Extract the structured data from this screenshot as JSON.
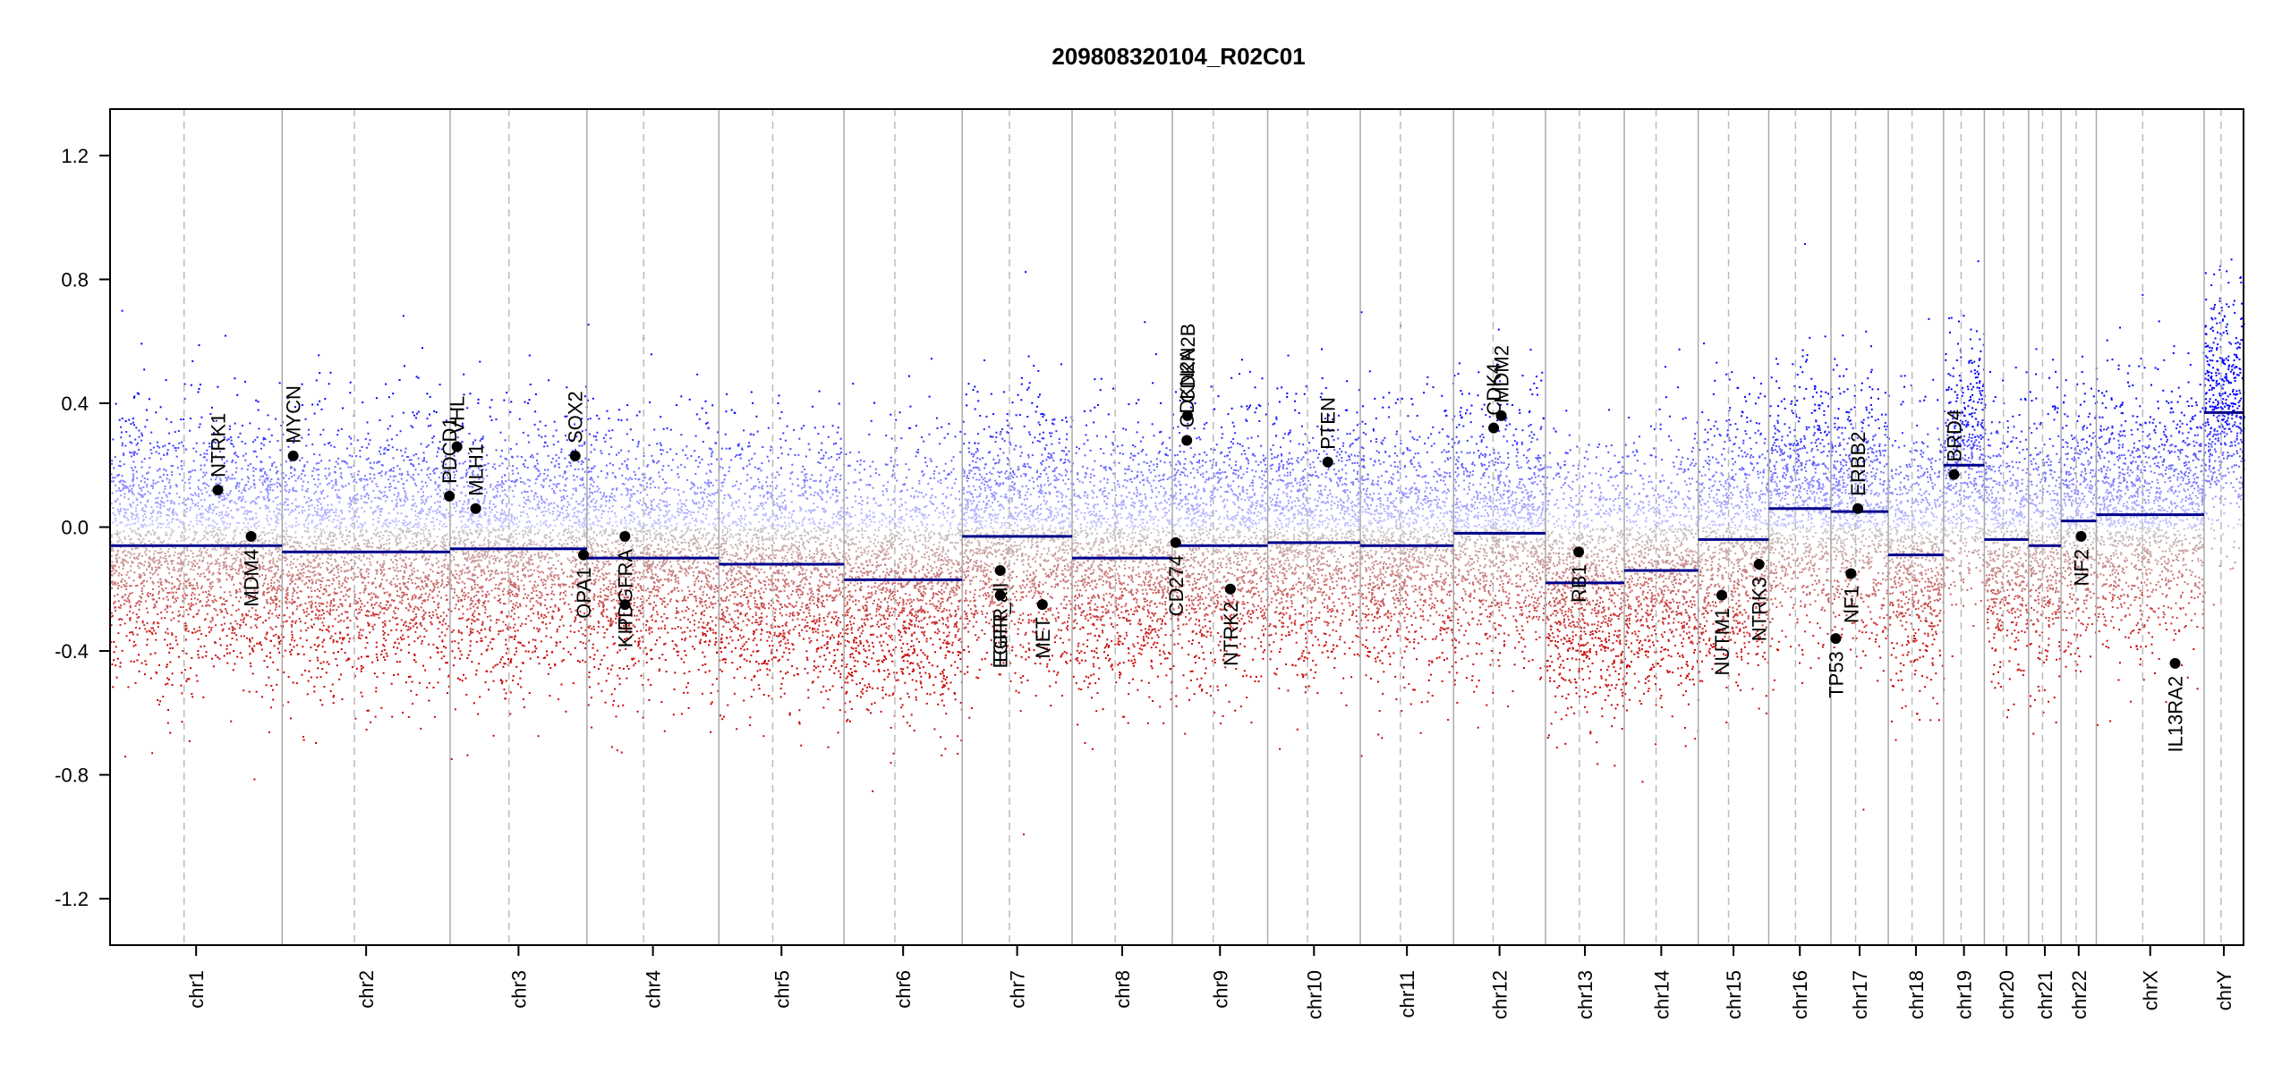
{
  "chart_data": {
    "type": "scatter",
    "title": "209808320104_R02C01",
    "xlabel": "",
    "ylabel": "",
    "ylim": [
      -1.35,
      1.35
    ],
    "y_ticks": [
      -1.2,
      -0.8,
      -0.4,
      0.0,
      0.4,
      0.8,
      1.2
    ],
    "y_tick_labels": [
      "-1.2",
      "-0.8",
      "-0.4",
      "0.0",
      "0.4",
      "0.8",
      "1.2"
    ],
    "chromosomes": [
      {
        "name": "chr1",
        "length": 249,
        "segment": -0.06
      },
      {
        "name": "chr2",
        "length": 243,
        "segment": -0.08
      },
      {
        "name": "chr3",
        "length": 198,
        "segment": -0.07
      },
      {
        "name": "chr4",
        "length": 191,
        "segment": -0.1
      },
      {
        "name": "chr5",
        "length": 181,
        "segment": -0.12
      },
      {
        "name": "chr6",
        "length": 171,
        "segment": -0.17
      },
      {
        "name": "chr7",
        "length": 159,
        "segment": -0.03
      },
      {
        "name": "chr8",
        "length": 145,
        "segment": -0.1
      },
      {
        "name": "chr9",
        "length": 138,
        "segment": -0.06
      },
      {
        "name": "chr10",
        "length": 134,
        "segment": -0.05
      },
      {
        "name": "chr11",
        "length": 135,
        "segment": -0.06
      },
      {
        "name": "chr12",
        "length": 133,
        "segment": -0.02
      },
      {
        "name": "chr13",
        "length": 114,
        "segment": -0.18
      },
      {
        "name": "chr14",
        "length": 107,
        "segment": -0.14
      },
      {
        "name": "chr15",
        "length": 102,
        "segment": -0.04
      },
      {
        "name": "chr16",
        "length": 90,
        "segment": 0.06
      },
      {
        "name": "chr17",
        "length": 83,
        "segment": 0.05
      },
      {
        "name": "chr18",
        "length": 80,
        "segment": -0.09
      },
      {
        "name": "chr19",
        "length": 59,
        "segment": 0.2
      },
      {
        "name": "chr20",
        "length": 64,
        "segment": -0.04
      },
      {
        "name": "chr21",
        "length": 47,
        "segment": -0.06
      },
      {
        "name": "chr22",
        "length": 51,
        "segment": 0.02
      },
      {
        "name": "chrX",
        "length": 156,
        "segment": 0.04
      },
      {
        "name": "chrY",
        "length": 57,
        "segment": 0.37
      }
    ],
    "genes": [
      {
        "name": "NTRK1",
        "chr": "chr1",
        "pos": 156,
        "value": 0.12,
        "label_side": "above"
      },
      {
        "name": "MDM4",
        "chr": "chr1",
        "pos": 204,
        "value": -0.03,
        "label_side": "below"
      },
      {
        "name": "MYCN",
        "chr": "chr2",
        "pos": 16,
        "value": 0.23,
        "label_side": "above"
      },
      {
        "name": "PDCD1",
        "chr": "chr2",
        "pos": 242,
        "value": 0.1,
        "label_side": "above"
      },
      {
        "name": "VHL",
        "chr": "chr3",
        "pos": 10,
        "value": 0.26,
        "label_side": "above"
      },
      {
        "name": "MLH1",
        "chr": "chr3",
        "pos": 37,
        "value": 0.06,
        "label_side": "above"
      },
      {
        "name": "SOX2",
        "chr": "chr3",
        "pos": 181,
        "value": 0.23,
        "label_side": "above"
      },
      {
        "name": "OPA1",
        "chr": "chr3",
        "pos": 193,
        "value": -0.09,
        "label_side": "below"
      },
      {
        "name": "PDGFRA",
        "chr": "chr4",
        "pos": 55,
        "value": -0.03,
        "label_side": "below"
      },
      {
        "name": "KIT",
        "chr": "chr4",
        "pos": 55,
        "value": -0.25,
        "label_side": "below"
      },
      {
        "name": "EGFR_all",
        "chr": "chr7",
        "pos": 55,
        "value": -0.14,
        "label_side": "below"
      },
      {
        "name": "EGFR",
        "chr": "chr7",
        "pos": 55,
        "value": -0.22,
        "label_side": "below"
      },
      {
        "name": "MET",
        "chr": "chr7",
        "pos": 116,
        "value": -0.25,
        "label_side": "below"
      },
      {
        "name": "CD274",
        "chr": "chr9",
        "pos": 5,
        "value": -0.05,
        "label_side": "below"
      },
      {
        "name": "CDKN2A",
        "chr": "chr9",
        "pos": 21,
        "value": 0.28,
        "label_side": "above"
      },
      {
        "name": "CDKN2B",
        "chr": "chr9",
        "pos": 22,
        "value": 0.36,
        "label_side": "above"
      },
      {
        "name": "NTRK2",
        "chr": "chr9",
        "pos": 84,
        "value": -0.2,
        "label_side": "below"
      },
      {
        "name": "PTEN",
        "chr": "chr10",
        "pos": 87,
        "value": 0.21,
        "label_side": "above"
      },
      {
        "name": "CDK4",
        "chr": "chr12",
        "pos": 58,
        "value": 0.32,
        "label_side": "above"
      },
      {
        "name": "MDM2",
        "chr": "chr12",
        "pos": 69,
        "value": 0.36,
        "label_side": "above"
      },
      {
        "name": "RB1",
        "chr": "chr13",
        "pos": 48,
        "value": -0.08,
        "label_side": "below"
      },
      {
        "name": "NUTM1",
        "chr": "chr15",
        "pos": 34,
        "value": -0.22,
        "label_side": "below"
      },
      {
        "name": "NTRK3",
        "chr": "chr15",
        "pos": 88,
        "value": -0.12,
        "label_side": "below"
      },
      {
        "name": "TP53",
        "chr": "chr17",
        "pos": 7,
        "value": -0.36,
        "label_side": "below"
      },
      {
        "name": "NF1",
        "chr": "chr17",
        "pos": 29,
        "value": -0.15,
        "label_side": "below"
      },
      {
        "name": "ERBB2",
        "chr": "chr17",
        "pos": 39,
        "value": 0.06,
        "label_side": "above"
      },
      {
        "name": "BRD4",
        "chr": "chr19",
        "pos": 15,
        "value": 0.17,
        "label_side": "above"
      },
      {
        "name": "NF2",
        "chr": "chr22",
        "pos": 29,
        "value": -0.03,
        "label_side": "below"
      },
      {
        "name": "IL13RA2",
        "chr": "chrX",
        "pos": 114,
        "value": -0.44,
        "label_side": "below"
      }
    ],
    "colors": {
      "gain": "#0000ff",
      "loss": "#cc0000",
      "segment": "#00008b",
      "gene_point": "#000000",
      "separator": "#aaaaaa",
      "centromere": "#bbbbbb"
    }
  }
}
